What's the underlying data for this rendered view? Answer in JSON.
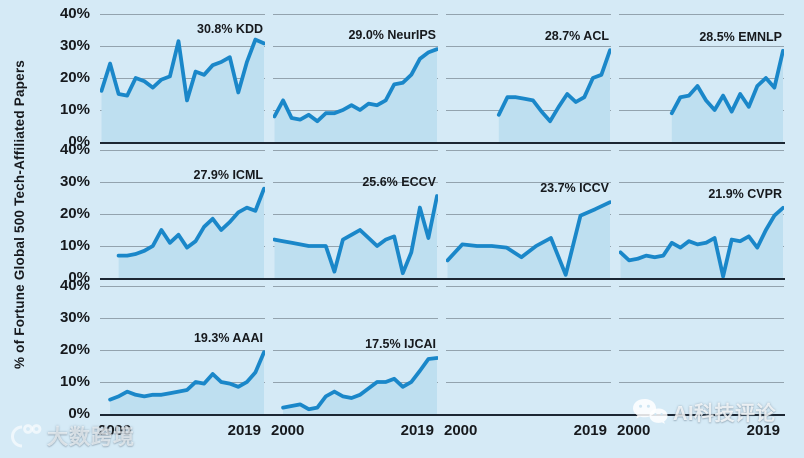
{
  "axis": {
    "y_title": "% of Fortune Global 500 Tech-Affiliated Papers",
    "y_tick_labels": [
      "40%",
      "30%",
      "20%",
      "10%",
      "0%"
    ],
    "y_tick_values": [
      40,
      30,
      20,
      10,
      0
    ],
    "x_left_label": "2000",
    "x_right_label": "2019"
  },
  "colors": {
    "background": "#d5eaf6",
    "area_fill": "#bedff0",
    "line": "#1a87c9",
    "gridline": "#93a3ae",
    "baseline": "#1c2733",
    "text": "#16191d"
  },
  "chart_data": {
    "type": "area",
    "title": "",
    "ylabel": "% of Fortune Global 500 Tech-Affiliated Papers",
    "xlabel": "",
    "x_range": [
      2000,
      2019
    ],
    "ylim": [
      0,
      40
    ],
    "y_ticks": [
      0,
      10,
      20,
      30,
      40
    ],
    "grid": true,
    "layout": {
      "rows": 3,
      "cols": 4
    },
    "series": [
      {
        "name": "KDD",
        "annotation": "30.8% KDD",
        "final_value": 30.8,
        "row": 0,
        "col": 0,
        "start_year": 2000,
        "values": [
          16,
          24.5,
          15,
          14.5,
          20,
          19,
          17,
          19.5,
          20.5,
          31.5,
          13,
          22,
          21,
          24,
          25,
          26.5,
          15.5,
          25,
          32,
          30.8
        ]
      },
      {
        "name": "NeurIPS",
        "annotation": "29.0% NeurIPS",
        "final_value": 29.0,
        "row": 0,
        "col": 1,
        "start_year": 2000,
        "values": [
          8,
          13,
          7.5,
          7,
          8.5,
          6.5,
          9,
          9,
          10,
          11.5,
          10,
          12,
          11.5,
          13,
          18,
          18.5,
          21,
          26,
          28,
          29
        ]
      },
      {
        "name": "ACL",
        "annotation": "28.7% ACL",
        "final_value": 28.7,
        "row": 0,
        "col": 2,
        "start_year": 2006,
        "values": [
          8.5,
          14,
          14,
          13.5,
          13,
          9.5,
          6.5,
          11,
          15,
          12.5,
          14,
          20,
          21,
          28.7
        ]
      },
      {
        "name": "EMNLP",
        "annotation": "28.5% EMNLP",
        "final_value": 28.5,
        "row": 0,
        "col": 3,
        "start_year": 2006,
        "values": [
          9,
          14,
          14.5,
          17.5,
          13,
          10,
          14.5,
          9.5,
          15,
          11,
          17.5,
          20,
          17,
          28.5
        ]
      },
      {
        "name": "ICML",
        "annotation": "27.9% ICML",
        "final_value": 27.9,
        "row": 1,
        "col": 0,
        "start_year": 2002,
        "values": [
          7,
          7,
          7.5,
          8.5,
          10,
          15,
          11,
          13.5,
          9.5,
          11.5,
          16,
          18.5,
          15,
          17.5,
          20.5,
          22,
          21,
          27.9
        ]
      },
      {
        "name": "ECCV",
        "annotation": "25.6% ECCV",
        "final_value": 25.6,
        "row": 1,
        "col": 1,
        "start_year": 2000,
        "values": [
          12,
          11.5,
          11,
          10.5,
          10,
          10,
          10,
          2,
          12,
          13.5,
          15,
          12.5,
          10,
          12,
          13,
          1.5,
          8,
          22,
          12.5,
          25.6
        ]
      },
      {
        "name": "ICCV",
        "annotation": "23.7% ICCV",
        "final_value": 23.7,
        "row": 1,
        "col": 2,
        "start_year": 2000,
        "values": [
          5.5,
          10.5,
          10,
          10,
          9.5,
          6.5,
          10,
          12.5,
          1,
          19.5,
          21.5,
          23.7
        ]
      },
      {
        "name": "CVPR",
        "annotation": "21.9% CVPR",
        "final_value": 21.9,
        "row": 1,
        "col": 3,
        "start_year": 2000,
        "values": [
          8,
          5.5,
          6,
          7,
          6.5,
          7,
          11,
          9.5,
          11.5,
          10.5,
          11,
          12.5,
          0.5,
          12,
          11.5,
          13,
          9.5,
          15,
          19.5,
          21.9
        ]
      },
      {
        "name": "AAAI",
        "annotation": "19.3% AAAI",
        "final_value": 19.3,
        "row": 2,
        "col": 0,
        "start_year": 2001,
        "values": [
          4.5,
          5.5,
          7,
          6,
          5.5,
          6,
          6,
          6.5,
          7,
          7.5,
          10,
          9.5,
          12.5,
          10,
          9.5,
          8.5,
          10,
          13,
          19.3
        ]
      },
      {
        "name": "IJCAI",
        "annotation": "17.5% IJCAI",
        "final_value": 17.5,
        "row": 2,
        "col": 1,
        "start_year": 2001,
        "values": [
          2,
          2.5,
          3,
          1.5,
          2,
          5.5,
          7,
          5.5,
          5,
          6,
          8,
          10,
          10,
          11,
          8.5,
          10,
          13.5,
          17.2,
          17.5
        ]
      }
    ]
  },
  "watermarks": {
    "bottom_left_text": "大数跨境",
    "bottom_right_text": "AI科技评论"
  }
}
